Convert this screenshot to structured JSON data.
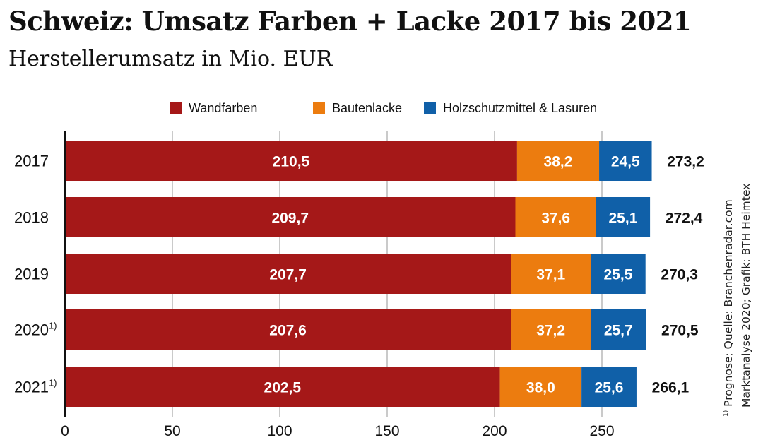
{
  "title": "Schweiz: Umsatz Farben + Lacke 2017 bis 2021",
  "subtitle": "Herstellerumsatz in Mio. EUR",
  "source": {
    "footnote_marker": "1)",
    "line1": "Prognose; Quelle: Branchenradar.com",
    "line2": "Marktanalyse 2020; Grafik: BTH Heimtex"
  },
  "chart_data": {
    "type": "bar",
    "orientation": "horizontal",
    "stacked": true,
    "title": "Schweiz: Umsatz Farben + Lacke 2017 bis 2021",
    "subtitle": "Herstellerumsatz in Mio. EUR",
    "categories": [
      "2017",
      "2018",
      "2019",
      "2020",
      "2021"
    ],
    "category_footnotes": [
      "",
      "",
      "",
      "1)",
      "1)"
    ],
    "series": [
      {
        "name": "Wandfarben",
        "color": "#a51818",
        "values": [
          210.5,
          209.7,
          207.7,
          207.6,
          202.5
        ],
        "labels": [
          "210,5",
          "209,7",
          "207,7",
          "207,6",
          "202,5"
        ]
      },
      {
        "name": "Bautenlacke",
        "color": "#ec7c0f",
        "values": [
          38.2,
          37.6,
          37.1,
          37.2,
          38.0
        ],
        "labels": [
          "38,2",
          "37,6",
          "37,1",
          "37,2",
          "38,0"
        ]
      },
      {
        "name": "Holzschutzmittel & Lasuren",
        "color": "#1060a8",
        "values": [
          24.5,
          25.1,
          25.5,
          25.7,
          25.6
        ],
        "labels": [
          "24,5",
          "25,1",
          "25,5",
          "25,7",
          "25,6"
        ]
      }
    ],
    "totals": [
      "273,2",
      "272,4",
      "270,3",
      "270,5",
      "266,1"
    ],
    "xlim": [
      0,
      275
    ],
    "xticks": [
      0,
      50,
      100,
      150,
      200,
      250
    ],
    "xtick_labels": [
      "0",
      "50",
      "100",
      "150",
      "200",
      "250"
    ],
    "grid": "vertical",
    "legend": "top"
  }
}
